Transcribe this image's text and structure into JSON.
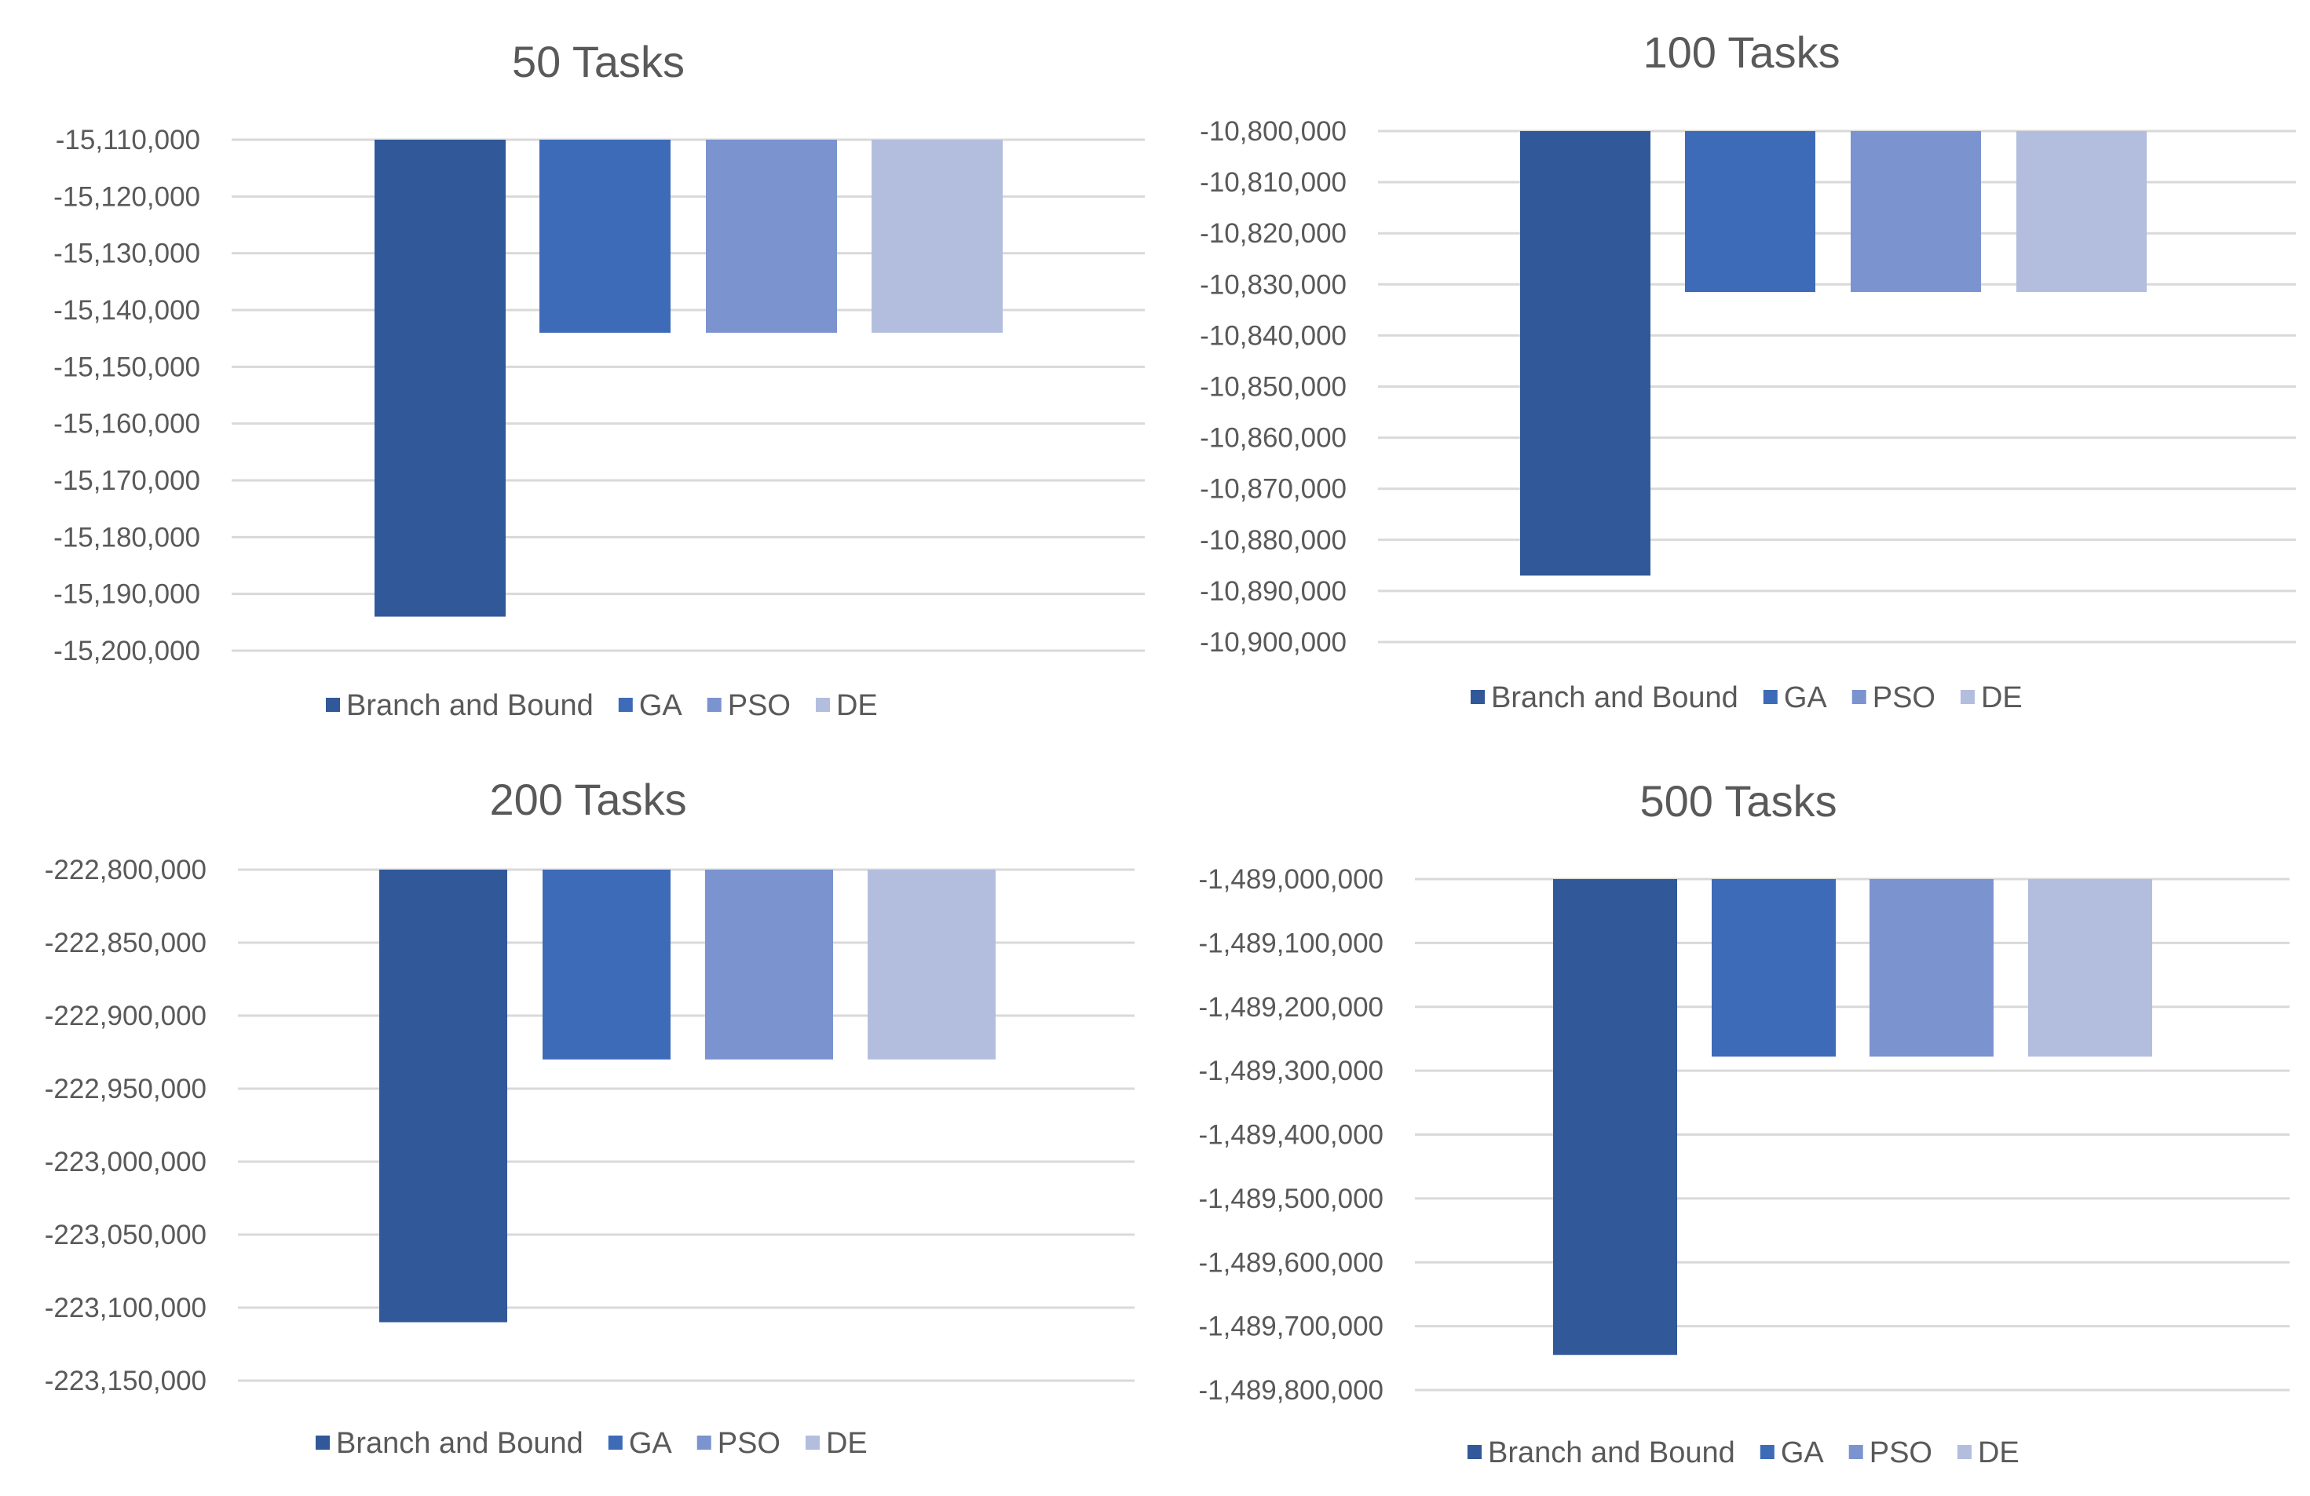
{
  "colors": {
    "branch_and_bound": "#315899",
    "ga": "#3e6bb8",
    "pso": "#7b93cf",
    "de": "#b3bedf",
    "grid": "#d9d9d9",
    "text": "#595959"
  },
  "chart_data": [
    {
      "type": "bar",
      "title": "50 Tasks",
      "categories": [
        "Branch and Bound",
        "GA",
        "PSO",
        "DE"
      ],
      "values": [
        -15194000,
        -15144000,
        -15144000,
        -15144000
      ],
      "ylim": [
        -15200000,
        -15110000
      ],
      "yticks": [
        -15110000,
        -15120000,
        -15130000,
        -15140000,
        -15150000,
        -15160000,
        -15170000,
        -15180000,
        -15190000,
        -15200000
      ],
      "ytick_labels": [
        "-15,110,000",
        "-15,120,000",
        "-15,130,000",
        "-15,140,000",
        "-15,150,000",
        "-15,160,000",
        "-15,170,000",
        "-15,180,000",
        "-15,190,000",
        "-15,200,000"
      ],
      "legend": [
        "Branch and Bound",
        "GA",
        "PSO",
        "DE"
      ],
      "legend_position": "bottom",
      "grid": true
    },
    {
      "type": "bar",
      "title": "100 Tasks",
      "categories": [
        "Branch and Bound",
        "GA",
        "PSO",
        "DE"
      ],
      "values": [
        -10887000,
        -10831500,
        -10831500,
        -10831500
      ],
      "ylim": [
        -10900000,
        -10800000
      ],
      "yticks": [
        -10800000,
        -10810000,
        -10820000,
        -10830000,
        -10840000,
        -10850000,
        -10860000,
        -10870000,
        -10880000,
        -10890000,
        -10900000
      ],
      "ytick_labels": [
        "-10,800,000",
        "-10,810,000",
        "-10,820,000",
        "-10,830,000",
        "-10,840,000",
        "-10,850,000",
        "-10,860,000",
        "-10,870,000",
        "-10,880,000",
        "-10,890,000",
        "-10,900,000"
      ],
      "legend": [
        "Branch and Bound",
        "GA",
        "PSO",
        "DE"
      ],
      "legend_position": "bottom",
      "grid": true
    },
    {
      "type": "bar",
      "title": "200 Tasks",
      "categories": [
        "Branch and Bound",
        "GA",
        "PSO",
        "DE"
      ],
      "values": [
        -223110000,
        -222930000,
        -222930000,
        -222930000
      ],
      "ylim": [
        -223150000,
        -222800000
      ],
      "yticks": [
        -222800000,
        -222850000,
        -222900000,
        -222950000,
        -223000000,
        -223050000,
        -223100000,
        -223150000
      ],
      "ytick_labels": [
        "-222,800,000",
        "-222,850,000",
        "-222,900,000",
        "-222,950,000",
        "-223,000,000",
        "-223,050,000",
        "-223,100,000",
        "-223,150,000"
      ],
      "legend": [
        "Branch and Bound",
        "GA",
        "PSO",
        "DE"
      ],
      "legend_position": "bottom",
      "grid": true
    },
    {
      "type": "bar",
      "title": "500 Tasks",
      "categories": [
        "Branch and Bound",
        "GA",
        "PSO",
        "DE"
      ],
      "values": [
        -1489745000,
        -1489278000,
        -1489278000,
        -1489278000
      ],
      "ylim": [
        -1489800000,
        -1489000000
      ],
      "yticks": [
        -1489000000,
        -1489100000,
        -1489200000,
        -1489300000,
        -1489400000,
        -1489500000,
        -1489600000,
        -1489700000,
        -1489800000
      ],
      "ytick_labels": [
        "-1,489,000,000",
        "-1,489,100,000",
        "-1,489,200,000",
        "-1,489,300,000",
        "-1,489,400,000",
        "-1,489,500,000",
        "-1,489,600,000",
        "-1,489,700,000",
        "-1,489,800,000"
      ],
      "legend": [
        "Branch and Bound",
        "GA",
        "PSO",
        "DE"
      ],
      "legend_position": "bottom",
      "grid": true
    }
  ]
}
